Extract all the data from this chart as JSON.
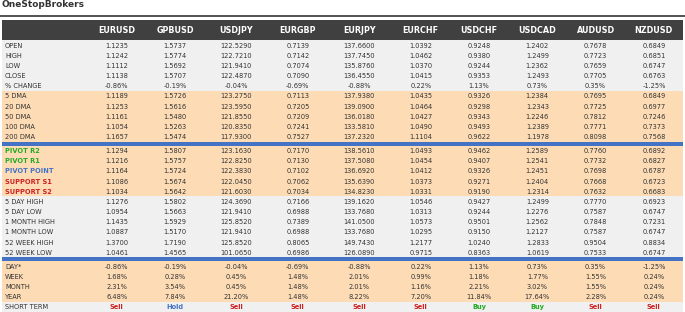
{
  "title": "OneStopBrokers",
  "columns": [
    "",
    "EURUSD",
    "GPBUSD",
    "USDJPY",
    "EURGBP",
    "EURJPY",
    "EURCHF",
    "USDCHF",
    "USDCAD",
    "AUDUSD",
    "NZDUSD"
  ],
  "rows": [
    [
      "OPEN",
      "1.1235",
      "1.5737",
      "122.5290",
      "0.7139",
      "137.6600",
      "1.0392",
      "0.9248",
      "1.2402",
      "0.7678",
      "0.6849"
    ],
    [
      "HIGH",
      "1.1242",
      "1.5774",
      "122.7210",
      "0.7142",
      "137.7450",
      "1.0462",
      "0.9380",
      "1.2499",
      "0.7723",
      "0.6851"
    ],
    [
      "LOW",
      "1.1112",
      "1.5692",
      "121.9410",
      "0.7074",
      "135.8760",
      "1.0370",
      "0.9244",
      "1.2362",
      "0.7659",
      "0.6747"
    ],
    [
      "CLOSE",
      "1.1138",
      "1.5707",
      "122.4870",
      "0.7090",
      "136.4550",
      "1.0415",
      "0.9353",
      "1.2493",
      "0.7705",
      "0.6763"
    ],
    [
      "% CHANGE",
      "-0.86%",
      "-0.19%",
      "-0.04%",
      "-0.69%",
      "-0.88%",
      "0.22%",
      "1.13%",
      "0.73%",
      "0.35%",
      "-1.25%"
    ],
    [
      "5 DMA",
      "1.1189",
      "1.5726",
      "123.2750",
      "0.7113",
      "137.9380",
      "1.0435",
      "0.9326",
      "1.2384",
      "0.7695",
      "0.6849"
    ],
    [
      "20 DMA",
      "1.1253",
      "1.5616",
      "123.5950",
      "0.7205",
      "139.0900",
      "1.0464",
      "0.9298",
      "1.2343",
      "0.7725",
      "0.6977"
    ],
    [
      "50 DMA",
      "1.1161",
      "1.5480",
      "121.8550",
      "0.7209",
      "136.0180",
      "1.0427",
      "0.9343",
      "1.2246",
      "0.7812",
      "0.7246"
    ],
    [
      "100 DMA",
      "1.1054",
      "1.5263",
      "120.8350",
      "0.7241",
      "133.5810",
      "1.0490",
      "0.9493",
      "1.2389",
      "0.7771",
      "0.7373"
    ],
    [
      "200 DMA",
      "1.1657",
      "1.5474",
      "117.9300",
      "0.7527",
      "137.2320",
      "1.1104",
      "0.9622",
      "1.1978",
      "0.8098",
      "0.7568"
    ],
    [
      "PIVOT R2",
      "1.1294",
      "1.5807",
      "123.1630",
      "0.7170",
      "138.5610",
      "1.0493",
      "0.9462",
      "1.2589",
      "0.7760",
      "0.6892"
    ],
    [
      "PIVOT R1",
      "1.1216",
      "1.5757",
      "122.8250",
      "0.7130",
      "137.5080",
      "1.0454",
      "0.9407",
      "1.2541",
      "0.7732",
      "0.6827"
    ],
    [
      "PIVOT POINT",
      "1.1164",
      "1.5724",
      "122.3830",
      "0.7102",
      "136.6920",
      "1.0412",
      "0.9326",
      "1.2451",
      "0.7698",
      "0.6787"
    ],
    [
      "SUPPORT S1",
      "1.1086",
      "1.5674",
      "122.0450",
      "0.7062",
      "135.6390",
      "1.0373",
      "0.9271",
      "1.2404",
      "0.7668",
      "0.6723"
    ],
    [
      "SUPPORT S2",
      "1.1034",
      "1.5642",
      "121.6030",
      "0.7034",
      "134.8230",
      "1.0331",
      "0.9190",
      "1.2314",
      "0.7632",
      "0.6683"
    ],
    [
      "5 DAY HIGH",
      "1.1276",
      "1.5802",
      "124.3690",
      "0.7166",
      "139.1620",
      "1.0546",
      "0.9427",
      "1.2499",
      "0.7770",
      "0.6923"
    ],
    [
      "5 DAY LOW",
      "1.0954",
      "1.5663",
      "121.9410",
      "0.6988",
      "133.7680",
      "1.0313",
      "0.9244",
      "1.2276",
      "0.7587",
      "0.6747"
    ],
    [
      "1 MONTH HIGH",
      "1.1435",
      "1.5929",
      "125.8520",
      "0.7389",
      "141.0500",
      "1.0573",
      "0.9501",
      "1.2562",
      "0.7848",
      "0.7231"
    ],
    [
      "1 MONTH LOW",
      "1.0887",
      "1.5170",
      "121.9410",
      "0.6988",
      "133.7680",
      "1.0295",
      "0.9150",
      "1.2127",
      "0.7587",
      "0.6747"
    ],
    [
      "52 WEEK HIGH",
      "1.3700",
      "1.7190",
      "125.8520",
      "0.8065",
      "149.7430",
      "1.2177",
      "1.0240",
      "1.2833",
      "0.9504",
      "0.8834"
    ],
    [
      "52 WEEK LOW",
      "1.0461",
      "1.4565",
      "101.0650",
      "0.6986",
      "126.0890",
      "0.9715",
      "0.8363",
      "1.0619",
      "0.7533",
      "0.6747"
    ],
    [
      "DAY*",
      "-0.86%",
      "-0.19%",
      "-0.04%",
      "-0.69%",
      "-0.88%",
      "0.22%",
      "1.13%",
      "0.73%",
      "0.35%",
      "-1.25%"
    ],
    [
      "WEEK",
      "1.68%",
      "0.28%",
      "0.45%",
      "1.48%",
      "2.01%",
      "0.99%",
      "1.18%",
      "1.77%",
      "1.55%",
      "0.24%"
    ],
    [
      "MONTH",
      "2.31%",
      "3.54%",
      "0.45%",
      "1.48%",
      "2.01%",
      "1.16%",
      "2.21%",
      "3.02%",
      "1.55%",
      "0.24%"
    ],
    [
      "YEAR",
      "6.48%",
      "7.84%",
      "21.20%",
      "1.48%",
      "8.22%",
      "7.20%",
      "11.84%",
      "17.64%",
      "2.28%",
      "0.24%"
    ],
    [
      "SHORT TERM",
      "Sell",
      "Hold",
      "Sell",
      "Sell",
      "Sell",
      "Sell",
      "Buy",
      "Buy",
      "Sell",
      "Sell"
    ]
  ],
  "row_sections": [
    0,
    0,
    0,
    0,
    0,
    1,
    1,
    1,
    1,
    1,
    2,
    2,
    2,
    2,
    2,
    0,
    0,
    0,
    0,
    0,
    0,
    1,
    1,
    1,
    1,
    3
  ],
  "header_bg": "#404040",
  "header_fg": "#FFFFFF",
  "row_bg_light": "#f0f0f0",
  "row_bg_orange": "#FDDCB5",
  "row_bg_short": "#e8e8e8",
  "divider_color": "#4472C4",
  "divider_rows": [
    10,
    21
  ],
  "pivot_r_color": "#22AA22",
  "pivot_pp_color": "#4472C4",
  "pivot_s_color": "#CC2222",
  "sell_color": "#CC2222",
  "buy_color": "#22AA22",
  "hold_color": "#4472C4",
  "col_widths_rel": [
    1.35,
    0.92,
    0.92,
    1.02,
    0.92,
    1.02,
    0.92,
    0.92,
    0.92,
    0.92,
    0.92
  ]
}
